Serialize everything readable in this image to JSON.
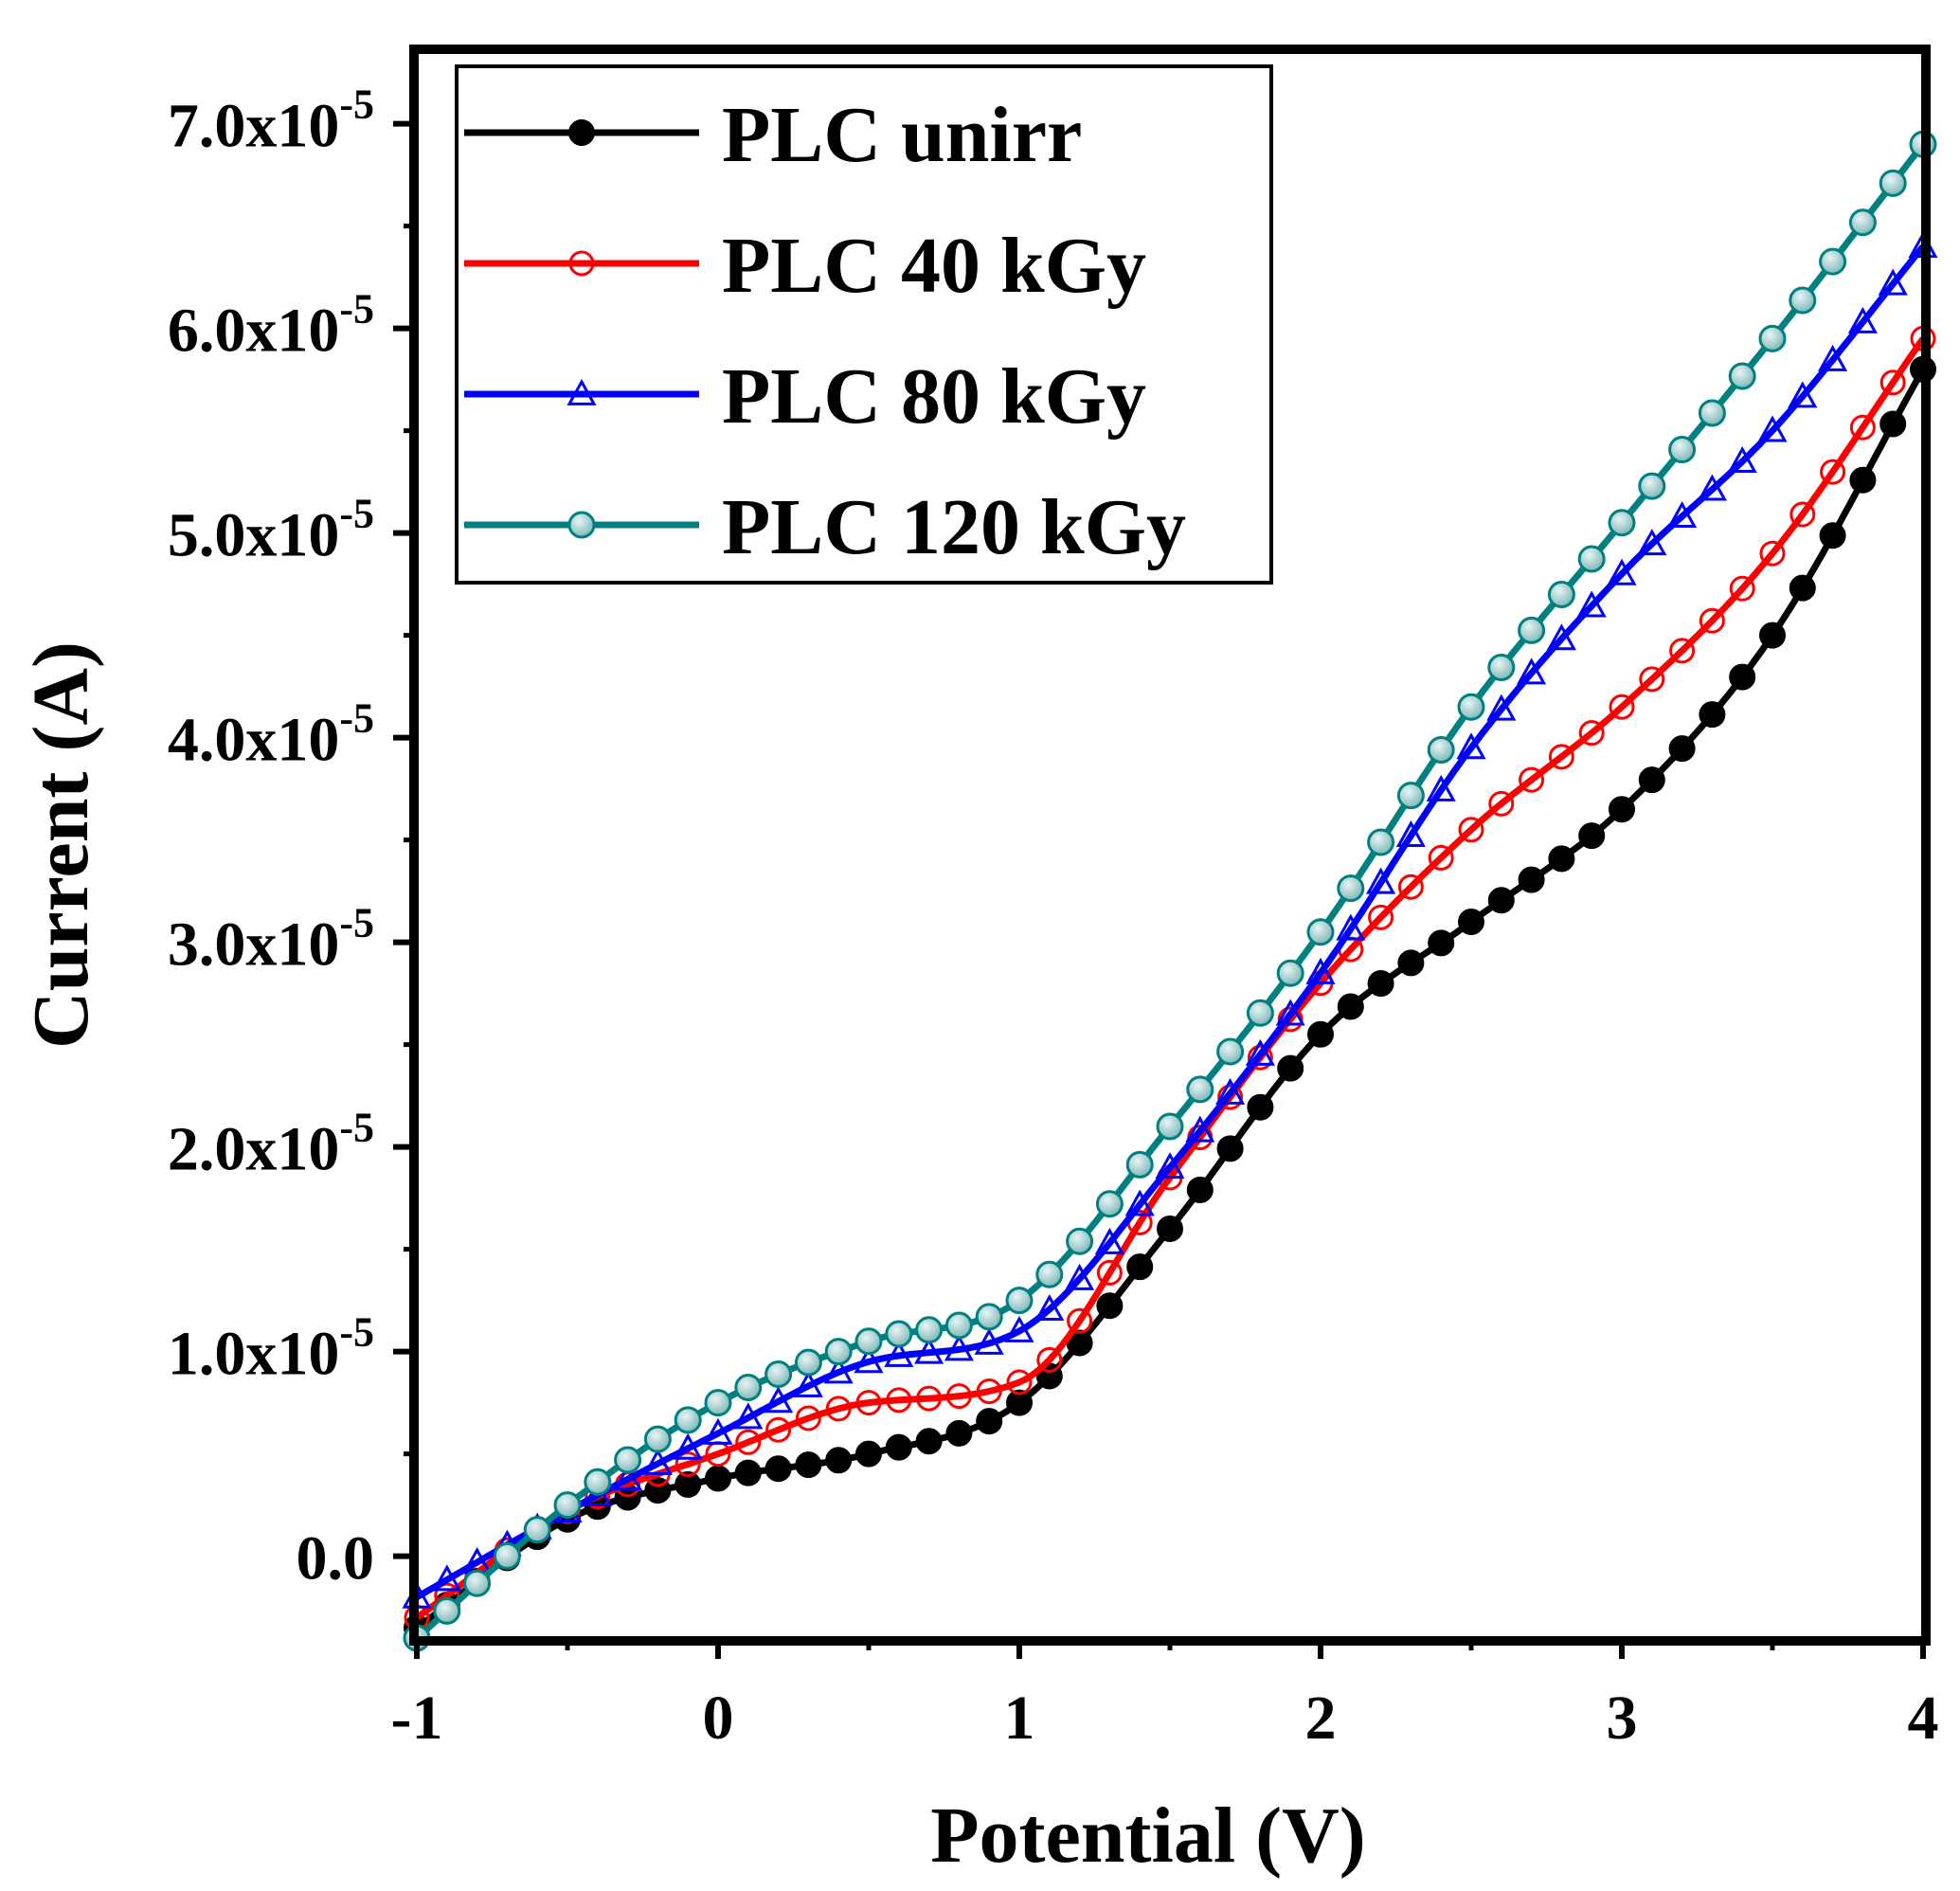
{
  "chart_data": {
    "type": "line",
    "title": "",
    "xlabel": "Potential (V)",
    "ylabel": "Current (A)",
    "xlim": [
      -1,
      4
    ],
    "ylim": [
      -4e-06,
      7.35e-05
    ],
    "xticks": [
      -1,
      0,
      1,
      2,
      3,
      4
    ],
    "xtick_labels": [
      "-1",
      "0",
      "1",
      "2",
      "3",
      "4"
    ],
    "yticks": [
      0,
      1e-05,
      2e-05,
      3e-05,
      4e-05,
      5e-05,
      6e-05,
      7e-05
    ],
    "ytick_labels": [
      {
        "mantissa": "0.0",
        "exponent": ""
      },
      {
        "mantissa": "1.0x10",
        "exponent": "-5"
      },
      {
        "mantissa": "2.0x10",
        "exponent": "-5"
      },
      {
        "mantissa": "3.0x10",
        "exponent": "-5"
      },
      {
        "mantissa": "4.0x10",
        "exponent": "-5"
      },
      {
        "mantissa": "5.0x10",
        "exponent": "-5"
      },
      {
        "mantissa": "6.0x10",
        "exponent": "-5"
      },
      {
        "mantissa": "7.0x10",
        "exponent": "-5"
      }
    ],
    "legend_position": "top-left",
    "x": [
      -1.0,
      -0.5,
      0.0,
      0.5,
      1.0,
      1.5,
      2.0,
      2.5,
      3.0,
      3.5,
      4.0
    ],
    "series": [
      {
        "name": "PLC unirr",
        "color": "#000000",
        "marker": "filled-circle",
        "values": [
          -3.5e-06,
          1.8e-06,
          3.8e-06,
          5e-06,
          7.5e-06,
          1.6e-05,
          2.55e-05,
          3.1e-05,
          3.65e-05,
          4.5e-05,
          5.8e-05
        ]
      },
      {
        "name": "PLC 40 kGy",
        "color": "#ff0000",
        "marker": "open-circle",
        "values": [
          -3e-06,
          2.2e-06,
          5e-06,
          7.5e-06,
          8.5e-06,
          1.85e-05,
          2.8e-05,
          3.55e-05,
          4.15e-05,
          4.9e-05,
          5.95e-05
        ]
      },
      {
        "name": "PLC 80 kGy",
        "color": "#0000ff",
        "marker": "open-triangle",
        "values": [
          -2e-06,
          2.2e-06,
          6e-06,
          9.5e-06,
          1.1e-05,
          1.9e-05,
          2.85e-05,
          3.95e-05,
          4.8e-05,
          5.5e-05,
          6.4e-05
        ]
      },
      {
        "name": "PLC 120 kGy",
        "color": "#008080",
        "marker": "shaded-circle",
        "values": [
          -4e-06,
          2.5e-06,
          7.5e-06,
          1.05e-05,
          1.25e-05,
          2.1e-05,
          3.05e-05,
          4.15e-05,
          5.05e-05,
          5.95e-05,
          6.9e-05
        ]
      }
    ]
  }
}
